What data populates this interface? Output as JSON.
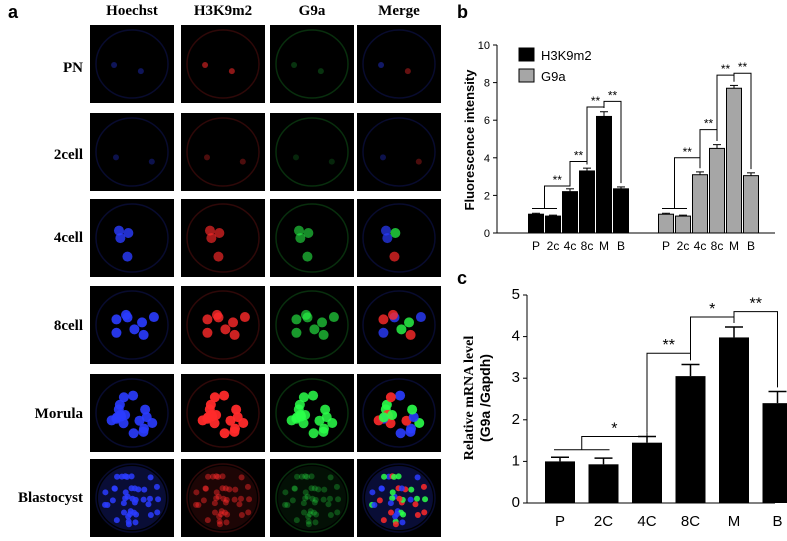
{
  "panel_a": {
    "letter": "a",
    "columns": [
      "Hoechst",
      "H3K9m2",
      "G9a",
      "Merge"
    ],
    "rows": [
      "PN",
      "2cell",
      "4cell",
      "8cell",
      "Morula",
      "Blastocyst"
    ],
    "channel_colors": {
      "Hoechst": "#2a3cff",
      "H3K9m2": "#ff2a2a",
      "G9a": "#2aff4a"
    }
  },
  "chart_data": [
    {
      "letter": "b",
      "type": "bar",
      "ylabel": "Fluorescence intensity",
      "ylim": [
        0,
        10
      ],
      "yticks": [
        0,
        2,
        4,
        6,
        8,
        10
      ],
      "categories": [
        "P",
        "2c",
        "4c",
        "8c",
        "M",
        "B"
      ],
      "series": [
        {
          "name": "H3K9m2",
          "color": "#000000",
          "values": [
            1.0,
            0.9,
            2.2,
            3.3,
            6.2,
            2.35
          ],
          "errors": [
            0.05,
            0.05,
            0.15,
            0.15,
            0.25,
            0.1
          ]
        },
        {
          "name": "G9a",
          "color": "#a6a6a6",
          "values": [
            1.0,
            0.9,
            3.1,
            4.5,
            7.7,
            3.05
          ],
          "errors": [
            0.05,
            0.05,
            0.15,
            0.2,
            0.15,
            0.15
          ]
        }
      ],
      "annotations": [
        "**",
        "**",
        "**",
        "**",
        "**",
        "**",
        "**",
        "**"
      ],
      "legend": "top-left"
    },
    {
      "letter": "c",
      "type": "bar",
      "ylabel_line1": "Relative mRNA level",
      "ylabel_line2": "(G9a /Gapdh)",
      "ylim": [
        0,
        5
      ],
      "yticks": [
        0,
        1,
        2,
        3,
        4,
        5
      ],
      "categories": [
        "P",
        "2C",
        "4C",
        "8C",
        "M",
        "B"
      ],
      "values": [
        1.0,
        0.93,
        1.45,
        3.05,
        3.98,
        2.4
      ],
      "errors": [
        0.1,
        0.15,
        0.15,
        0.28,
        0.25,
        0.28
      ],
      "annotations": [
        "*",
        "**",
        "*",
        "**"
      ]
    }
  ]
}
